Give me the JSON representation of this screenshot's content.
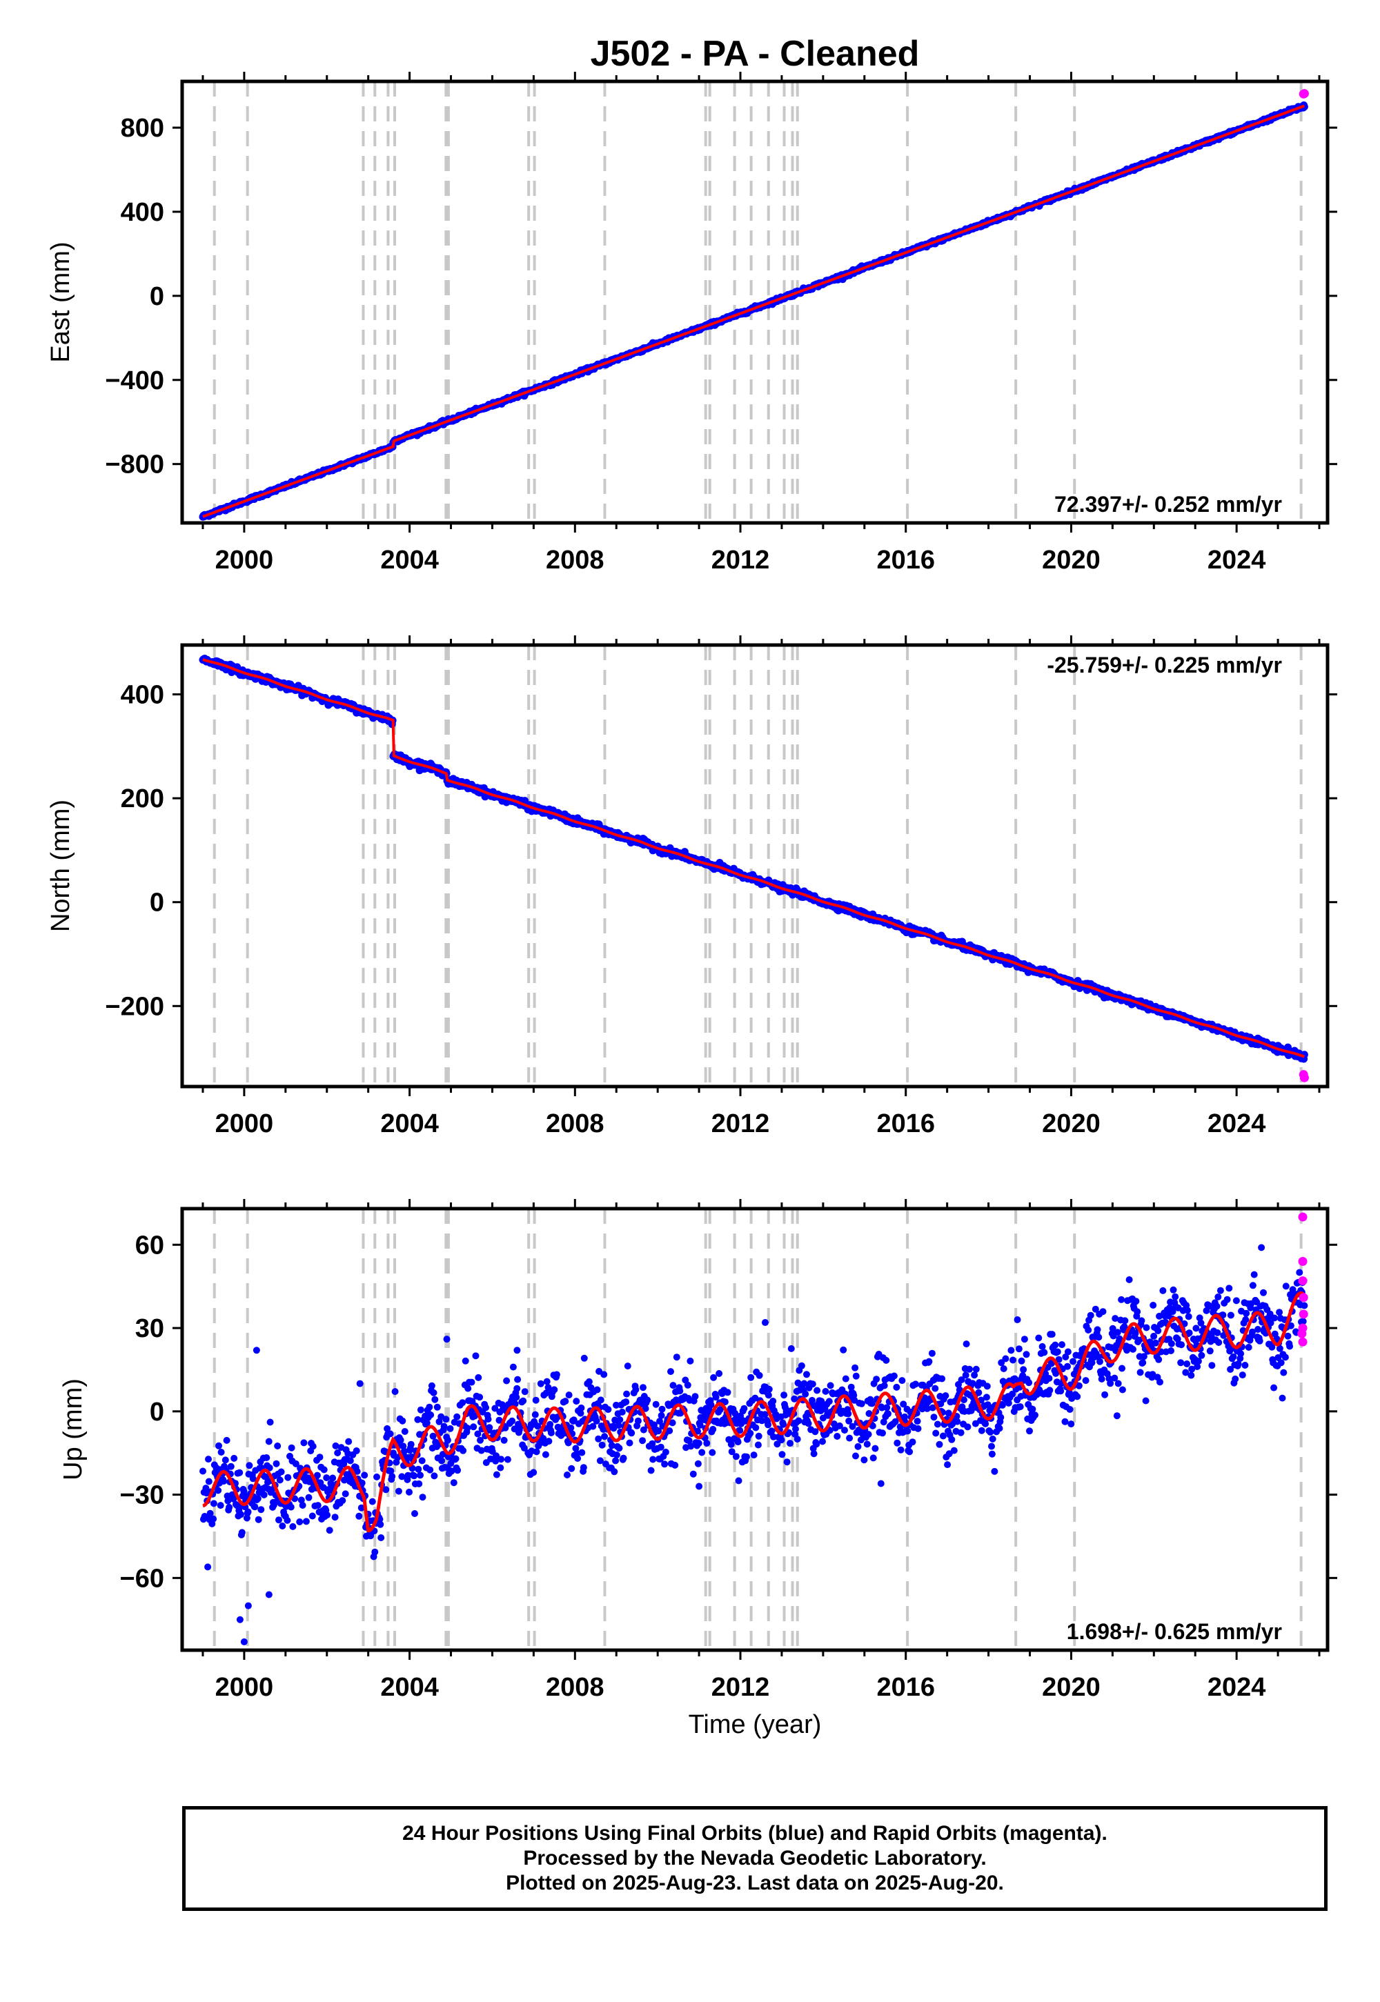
{
  "title": "J502  - PA - Cleaned",
  "footer": {
    "line1": "24 Hour Positions Using Final Orbits (blue) and Rapid Orbits (magenta).",
    "line2": "Processed by the Nevada Geodetic Laboratory.",
    "line3": "Plotted on 2025-Aug-23. Last data on 2025-Aug-20."
  },
  "colors": {
    "final_orbits": "#0000ff",
    "rapid_orbits": "#ff00ff",
    "model": "#ff0000",
    "event_lines": "#c8c8c8",
    "frame": "#000000"
  },
  "chart_data": [
    {
      "type": "scatter",
      "name": "east",
      "ylabel": "East (mm)",
      "xlim": [
        1998.5,
        2026.2
      ],
      "ylim": [
        -1080,
        1020
      ],
      "xticks": [
        2000,
        2004,
        2008,
        2012,
        2016,
        2020,
        2024
      ],
      "yticks": [
        -800,
        -400,
        0,
        400,
        800
      ],
      "ytick_labels": [
        "−800",
        "−400",
        "0",
        "400",
        "800"
      ],
      "rate_label": "72.397+/- 0.252 mm/yr",
      "rate_label_position": "bottom-right",
      "time_range": [
        1999.0,
        2025.64
      ],
      "linear": {
        "t0": 1999.0,
        "y0": -1050,
        "slope": 72.397
      },
      "offsets": [
        {
          "t": 2003.6,
          "dy": 25
        }
      ],
      "seasonal_amplitude": 0,
      "noise": 4,
      "rapid_points": [
        [
          2025.62,
          960
        ],
        [
          2025.64,
          962
        ]
      ]
    },
    {
      "type": "scatter",
      "name": "north",
      "ylabel": "North (mm)",
      "xlim": [
        1998.5,
        2026.2
      ],
      "ylim": [
        -355,
        495
      ],
      "xticks": [
        2000,
        2004,
        2008,
        2012,
        2016,
        2020,
        2024
      ],
      "yticks": [
        -200,
        0,
        200,
        400
      ],
      "ytick_labels": [
        "−200",
        "0",
        "200",
        "400"
      ],
      "rate_label": "-25.759+/- 0.225 mm/yr",
      "rate_label_position": "top-right",
      "time_range": [
        1999.0,
        2025.64
      ],
      "linear": {
        "t0": 1999.0,
        "y0": 468,
        "slope": -25.759
      },
      "offsets": [
        {
          "t": 2003.6,
          "dy": -68
        },
        {
          "t": 2004.9,
          "dy": -12
        }
      ],
      "seasonal_amplitude": 1,
      "noise": 3,
      "rapid_points": [
        [
          2025.62,
          -332
        ],
        [
          2025.64,
          -338
        ]
      ]
    },
    {
      "type": "scatter",
      "name": "up",
      "ylabel": "Up (mm)",
      "xlim": [
        1998.5,
        2026.2
      ],
      "ylim": [
        -86,
        73
      ],
      "xticks": [
        2000,
        2004,
        2008,
        2012,
        2016,
        2020,
        2024
      ],
      "yticks": [
        -60,
        -30,
        0,
        30,
        60
      ],
      "ytick_labels": [
        "−60",
        "−30",
        "0",
        "30",
        "60"
      ],
      "rate_label": "1.698+/- 0.625 mm/yr",
      "rate_label_position": "bottom-right",
      "time_range": [
        1999.0,
        2025.64
      ],
      "model_knots": [
        [
          1999.0,
          -28
        ],
        [
          2002.9,
          -26
        ],
        [
          2003.0,
          -37
        ],
        [
          2003.2,
          -37
        ],
        [
          2003.6,
          -15
        ],
        [
          2004.9,
          -10
        ],
        [
          2005.4,
          -4
        ],
        [
          2008.0,
          -5
        ],
        [
          2012.0,
          -3
        ],
        [
          2016.0,
          1
        ],
        [
          2018.6,
          4
        ],
        [
          2018.8,
          12
        ],
        [
          2020.0,
          14
        ],
        [
          2021.0,
          24
        ],
        [
          2022.0,
          27
        ],
        [
          2024.0,
          29
        ],
        [
          2025.0,
          30
        ],
        [
          2025.64,
          38
        ]
      ],
      "seasonal_amplitude": 6,
      "noise": 7,
      "outliers": [
        [
          1999.9,
          -75
        ],
        [
          2000.0,
          -83
        ],
        [
          2000.1,
          -70
        ],
        [
          2000.6,
          -66
        ],
        [
          2000.3,
          22
        ],
        [
          2002.8,
          10
        ],
        [
          2004.9,
          26
        ],
        [
          2005.6,
          20
        ],
        [
          2006.6,
          22
        ],
        [
          2011.0,
          -27
        ],
        [
          2012.6,
          32
        ],
        [
          2015.4,
          -26
        ],
        [
          2024.6,
          59
        ],
        [
          2018.7,
          33
        ]
      ],
      "rapid_points": [
        [
          2025.6,
          70
        ],
        [
          2025.6,
          54
        ],
        [
          2025.6,
          47
        ],
        [
          2025.62,
          41
        ],
        [
          2025.62,
          35
        ],
        [
          2025.6,
          30
        ],
        [
          2025.58,
          28
        ],
        [
          2025.6,
          25
        ]
      ]
    }
  ],
  "event_lines": [
    1999.28,
    2000.08,
    2002.88,
    2003.16,
    2003.48,
    2003.64,
    2004.88,
    2004.94,
    2006.88,
    2007.02,
    2008.72,
    2011.16,
    2011.26,
    2011.86,
    2012.26,
    2012.68,
    2013.06,
    2013.26,
    2013.38,
    2016.04,
    2018.66,
    2020.08,
    2025.56
  ]
}
